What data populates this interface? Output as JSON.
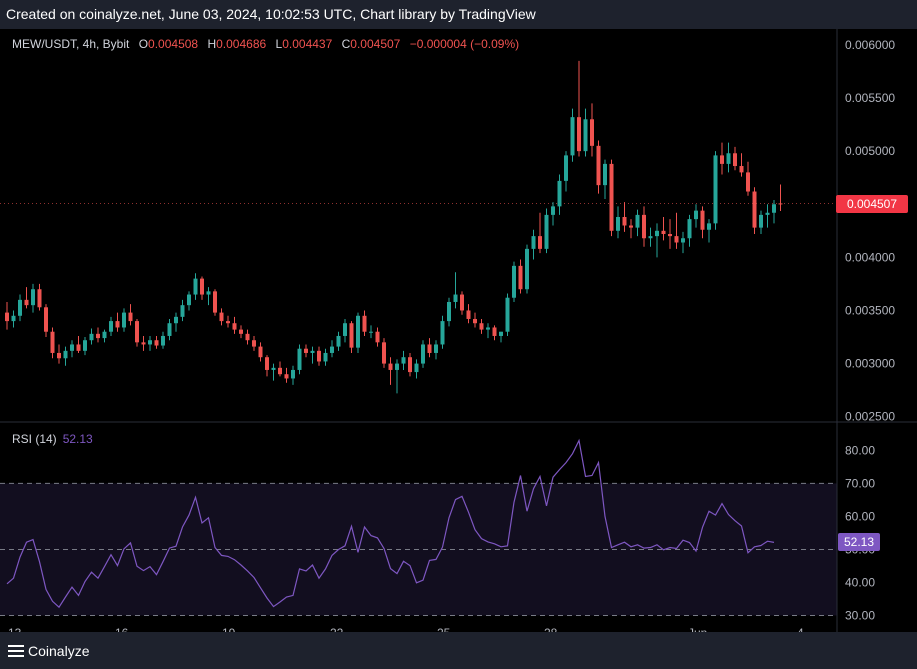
{
  "header": {
    "created_text": "Created on coinalyze.net, June 03, 2024, 10:02:53 UTC, Chart library by TradingView"
  },
  "legend": {
    "symbol": "MEW/USDT, 4h, Bybit",
    "o_label": "O",
    "o": "0.004508",
    "h_label": "H",
    "h": "0.004686",
    "l_label": "L",
    "l": "0.004437",
    "c_label": "C",
    "c": "0.004507",
    "change": "−0.000004 (−0.09%)"
  },
  "rsi_legend": {
    "label": "RSI (14)",
    "value": "52.13"
  },
  "last_price_tag": "0.004507",
  "rsi_tag": "52.13",
  "footer": {
    "brand": "Coinalyze"
  },
  "colors": {
    "up": "#26a69a",
    "down": "#ef5350",
    "rsi_line": "#7e57c2",
    "rsi_band": "#120e1f",
    "tag_price": "#f23645",
    "tag_rsi": "#7e57c2"
  },
  "chart_data": [
    {
      "type": "candlestick",
      "ylim": [
        0.00245,
        0.00615
      ],
      "y_ticks": [
        "0.006000",
        "0.005500",
        "0.005000",
        "0.004500",
        "0.004000",
        "0.003500",
        "0.003000",
        "0.002500"
      ],
      "x_ticks": [
        "13",
        "16",
        "19",
        "22",
        "25",
        "28",
        "Jun",
        "4"
      ],
      "candles": [
        [
          0.00348,
          0.00358,
          0.00332,
          0.0034
        ],
        [
          0.0034,
          0.0035,
          0.00334,
          0.00345
        ],
        [
          0.00345,
          0.00365,
          0.0034,
          0.0036
        ],
        [
          0.0036,
          0.00372,
          0.00352,
          0.00355
        ],
        [
          0.00355,
          0.00375,
          0.00348,
          0.0037
        ],
        [
          0.0037,
          0.00375,
          0.0035,
          0.00353
        ],
        [
          0.00353,
          0.00356,
          0.00325,
          0.0033
        ],
        [
          0.0033,
          0.00334,
          0.00305,
          0.0031
        ],
        [
          0.0031,
          0.00318,
          0.003,
          0.00305
        ],
        [
          0.00305,
          0.00316,
          0.00298,
          0.00312
        ],
        [
          0.00312,
          0.00322,
          0.00306,
          0.00318
        ],
        [
          0.00318,
          0.00326,
          0.0031,
          0.00312
        ],
        [
          0.00312,
          0.00325,
          0.00308,
          0.00322
        ],
        [
          0.00322,
          0.00333,
          0.00318,
          0.00328
        ],
        [
          0.00328,
          0.00334,
          0.0032,
          0.00324
        ],
        [
          0.00324,
          0.00332,
          0.0032,
          0.0033
        ],
        [
          0.0033,
          0.00344,
          0.00326,
          0.0034
        ],
        [
          0.0034,
          0.00348,
          0.0033,
          0.00334
        ],
        [
          0.00334,
          0.00352,
          0.0033,
          0.00348
        ],
        [
          0.00348,
          0.00356,
          0.00336,
          0.0034
        ],
        [
          0.0034,
          0.00342,
          0.00316,
          0.0032
        ],
        [
          0.0032,
          0.00326,
          0.00312,
          0.00318
        ],
        [
          0.00318,
          0.00326,
          0.00312,
          0.00322
        ],
        [
          0.00322,
          0.00326,
          0.00314,
          0.00317
        ],
        [
          0.00317,
          0.0033,
          0.00314,
          0.00326
        ],
        [
          0.00326,
          0.00342,
          0.00322,
          0.00338
        ],
        [
          0.00338,
          0.00348,
          0.0033,
          0.00344
        ],
        [
          0.00344,
          0.0036,
          0.0034,
          0.00355
        ],
        [
          0.00355,
          0.00368,
          0.0035,
          0.00365
        ],
        [
          0.00365,
          0.00385,
          0.0036,
          0.0038
        ],
        [
          0.0038,
          0.00382,
          0.0036,
          0.00365
        ],
        [
          0.00365,
          0.00372,
          0.00355,
          0.00368
        ],
        [
          0.00368,
          0.0037,
          0.00345,
          0.00348
        ],
        [
          0.00348,
          0.00352,
          0.00336,
          0.0034
        ],
        [
          0.0034,
          0.00345,
          0.00334,
          0.00338
        ],
        [
          0.00338,
          0.00344,
          0.00328,
          0.00332
        ],
        [
          0.00332,
          0.00336,
          0.00324,
          0.00328
        ],
        [
          0.00328,
          0.00332,
          0.00318,
          0.00322
        ],
        [
          0.00322,
          0.00326,
          0.00312,
          0.00316
        ],
        [
          0.00316,
          0.0032,
          0.00302,
          0.00306
        ],
        [
          0.00306,
          0.00308,
          0.00288,
          0.00294
        ],
        [
          0.00294,
          0.003,
          0.00284,
          0.00296
        ],
        [
          0.00296,
          0.00302,
          0.00288,
          0.0029
        ],
        [
          0.0029,
          0.00296,
          0.00282,
          0.00286
        ],
        [
          0.00286,
          0.00298,
          0.0028,
          0.00294
        ],
        [
          0.00294,
          0.00318,
          0.0029,
          0.00314
        ],
        [
          0.00314,
          0.00318,
          0.00306,
          0.0031
        ],
        [
          0.0031,
          0.00316,
          0.003,
          0.00312
        ],
        [
          0.00312,
          0.00316,
          0.00298,
          0.00302
        ],
        [
          0.00302,
          0.00314,
          0.00298,
          0.0031
        ],
        [
          0.0031,
          0.00322,
          0.00306,
          0.00316
        ],
        [
          0.00316,
          0.0033,
          0.00312,
          0.00326
        ],
        [
          0.00326,
          0.00342,
          0.0032,
          0.00338
        ],
        [
          0.00338,
          0.0034,
          0.0031,
          0.00315
        ],
        [
          0.00315,
          0.00348,
          0.0031,
          0.00345
        ],
        [
          0.00345,
          0.0035,
          0.00326,
          0.0033
        ],
        [
          0.0033,
          0.00336,
          0.00324,
          0.0033
        ],
        [
          0.0033,
          0.00334,
          0.00316,
          0.0032
        ],
        [
          0.0032,
          0.00324,
          0.00296,
          0.003
        ],
        [
          0.003,
          0.00306,
          0.0028,
          0.00294
        ],
        [
          0.00294,
          0.00304,
          0.00272,
          0.003
        ],
        [
          0.003,
          0.00312,
          0.00294,
          0.00306
        ],
        [
          0.00306,
          0.0031,
          0.00288,
          0.00292
        ],
        [
          0.00292,
          0.00304,
          0.00286,
          0.003
        ],
        [
          0.003,
          0.00322,
          0.00296,
          0.00318
        ],
        [
          0.00318,
          0.00324,
          0.00306,
          0.0031
        ],
        [
          0.0031,
          0.00322,
          0.00304,
          0.00318
        ],
        [
          0.00318,
          0.00345,
          0.00314,
          0.0034
        ],
        [
          0.0034,
          0.00362,
          0.00335,
          0.00358
        ],
        [
          0.00358,
          0.00386,
          0.00352,
          0.00365
        ],
        [
          0.00365,
          0.00368,
          0.00346,
          0.0035
        ],
        [
          0.0035,
          0.00356,
          0.00338,
          0.00342
        ],
        [
          0.00342,
          0.00348,
          0.00334,
          0.00338
        ],
        [
          0.00338,
          0.00342,
          0.00328,
          0.00332
        ],
        [
          0.00332,
          0.00338,
          0.00324,
          0.00334
        ],
        [
          0.00334,
          0.00336,
          0.00322,
          0.00326
        ],
        [
          0.00326,
          0.0033,
          0.0032,
          0.0033
        ],
        [
          0.0033,
          0.00366,
          0.00326,
          0.00362
        ],
        [
          0.00362,
          0.00396,
          0.00358,
          0.00392
        ],
        [
          0.00392,
          0.00398,
          0.00366,
          0.0037
        ],
        [
          0.0037,
          0.00412,
          0.00366,
          0.00408
        ],
        [
          0.00408,
          0.00426,
          0.00398,
          0.0042
        ],
        [
          0.0042,
          0.00442,
          0.00404,
          0.00408
        ],
        [
          0.00408,
          0.00446,
          0.00404,
          0.0044
        ],
        [
          0.0044,
          0.00452,
          0.0043,
          0.00448
        ],
        [
          0.00448,
          0.00478,
          0.0044,
          0.00472
        ],
        [
          0.00472,
          0.005,
          0.00462,
          0.00496
        ],
        [
          0.00496,
          0.0054,
          0.0049,
          0.00532
        ],
        [
          0.00532,
          0.00585,
          0.00495,
          0.005
        ],
        [
          0.005,
          0.0054,
          0.00495,
          0.0053
        ],
        [
          0.0053,
          0.00545,
          0.00495,
          0.00505
        ],
        [
          0.00505,
          0.0051,
          0.0046,
          0.00468
        ],
        [
          0.00468,
          0.00492,
          0.00455,
          0.00488
        ],
        [
          0.00488,
          0.00492,
          0.0042,
          0.00425
        ],
        [
          0.00425,
          0.00448,
          0.00418,
          0.00438
        ],
        [
          0.00438,
          0.00452,
          0.00424,
          0.0043
        ],
        [
          0.0043,
          0.00436,
          0.00418,
          0.00428
        ],
        [
          0.00428,
          0.00445,
          0.0042,
          0.0044
        ],
        [
          0.0044,
          0.00448,
          0.0041,
          0.00418
        ],
        [
          0.00418,
          0.00428,
          0.0041,
          0.0042
        ],
        [
          0.0042,
          0.00432,
          0.004,
          0.00425
        ],
        [
          0.00425,
          0.00438,
          0.00416,
          0.00422
        ],
        [
          0.00422,
          0.00436,
          0.00408,
          0.0042
        ],
        [
          0.0042,
          0.00442,
          0.00408,
          0.00414
        ],
        [
          0.00414,
          0.00424,
          0.00404,
          0.00418
        ],
        [
          0.00418,
          0.0044,
          0.0041,
          0.00436
        ],
        [
          0.00436,
          0.0045,
          0.00428,
          0.00444
        ],
        [
          0.00444,
          0.00448,
          0.00418,
          0.00426
        ],
        [
          0.00426,
          0.00436,
          0.00414,
          0.00432
        ],
        [
          0.00432,
          0.005,
          0.00426,
          0.00496
        ],
        [
          0.00496,
          0.00508,
          0.00478,
          0.00488
        ],
        [
          0.00488,
          0.00508,
          0.0048,
          0.00498
        ],
        [
          0.00498,
          0.00504,
          0.00482,
          0.00486
        ],
        [
          0.00486,
          0.00498,
          0.00476,
          0.0048
        ],
        [
          0.0048,
          0.0049,
          0.00458,
          0.00462
        ],
        [
          0.00462,
          0.00466,
          0.00422,
          0.00428
        ],
        [
          0.00428,
          0.00444,
          0.00422,
          0.0044
        ],
        [
          0.0044,
          0.0045,
          0.00428,
          0.00442
        ],
        [
          0.00442,
          0.00454,
          0.00432,
          0.0045
        ],
        [
          0.004508,
          0.004686,
          0.004437,
          0.004507
        ]
      ]
    },
    {
      "type": "line",
      "name": "RSI (14)",
      "ylim": [
        25,
        88
      ],
      "y_ticks": [
        "80.00",
        "70.00",
        "60.00",
        "50.00",
        "40.00",
        "30.00"
      ],
      "levels": [
        70,
        50,
        30
      ],
      "values": [
        39.6,
        41.3,
        47.7,
        52.2,
        53.0,
        46.3,
        37.9,
        34.3,
        32.5,
        35.6,
        38.6,
        36.1,
        40.3,
        43.1,
        41.3,
        44.8,
        48.4,
        45.1,
        50.2,
        52.0,
        44.9,
        43.6,
        44.8,
        42.4,
        46.3,
        50.4,
        51.0,
        56.8,
        60.4,
        65.8,
        58.0,
        59.6,
        50.6,
        48.2,
        47.9,
        46.9,
        45.3,
        43.5,
        41.5,
        38.4,
        35.3,
        32.7,
        34.1,
        35.6,
        36.1,
        44.1,
        43.5,
        45.3,
        41.3,
        44.1,
        48.2,
        50.0,
        51.1,
        57.0,
        49.1,
        56.8,
        54.2,
        53.5,
        50.3,
        44.2,
        42.7,
        46.4,
        45.1,
        39.9,
        40.7,
        46.7,
        47.0,
        50.7,
        59.6,
        65.1,
        66.1,
        61.3,
        56.0,
        53.3,
        52.3,
        51.7,
        50.8,
        51.1,
        64.3,
        72.4,
        61.6,
        68.4,
        72.1,
        63.2,
        71.9,
        74.2,
        76.3,
        79.0,
        83.0,
        72.1,
        72.4,
        76.3,
        60.0,
        50.6,
        51.4,
        52.2,
        50.8,
        51.4,
        50.4,
        50.6,
        51.4,
        49.9,
        50.6,
        50.3,
        52.8,
        52.1,
        49.5,
        56.7,
        61.6,
        60.4,
        63.9,
        60.6,
        58.7,
        57.1,
        49.0,
        50.8,
        51.2,
        52.5,
        52.13
      ]
    }
  ]
}
